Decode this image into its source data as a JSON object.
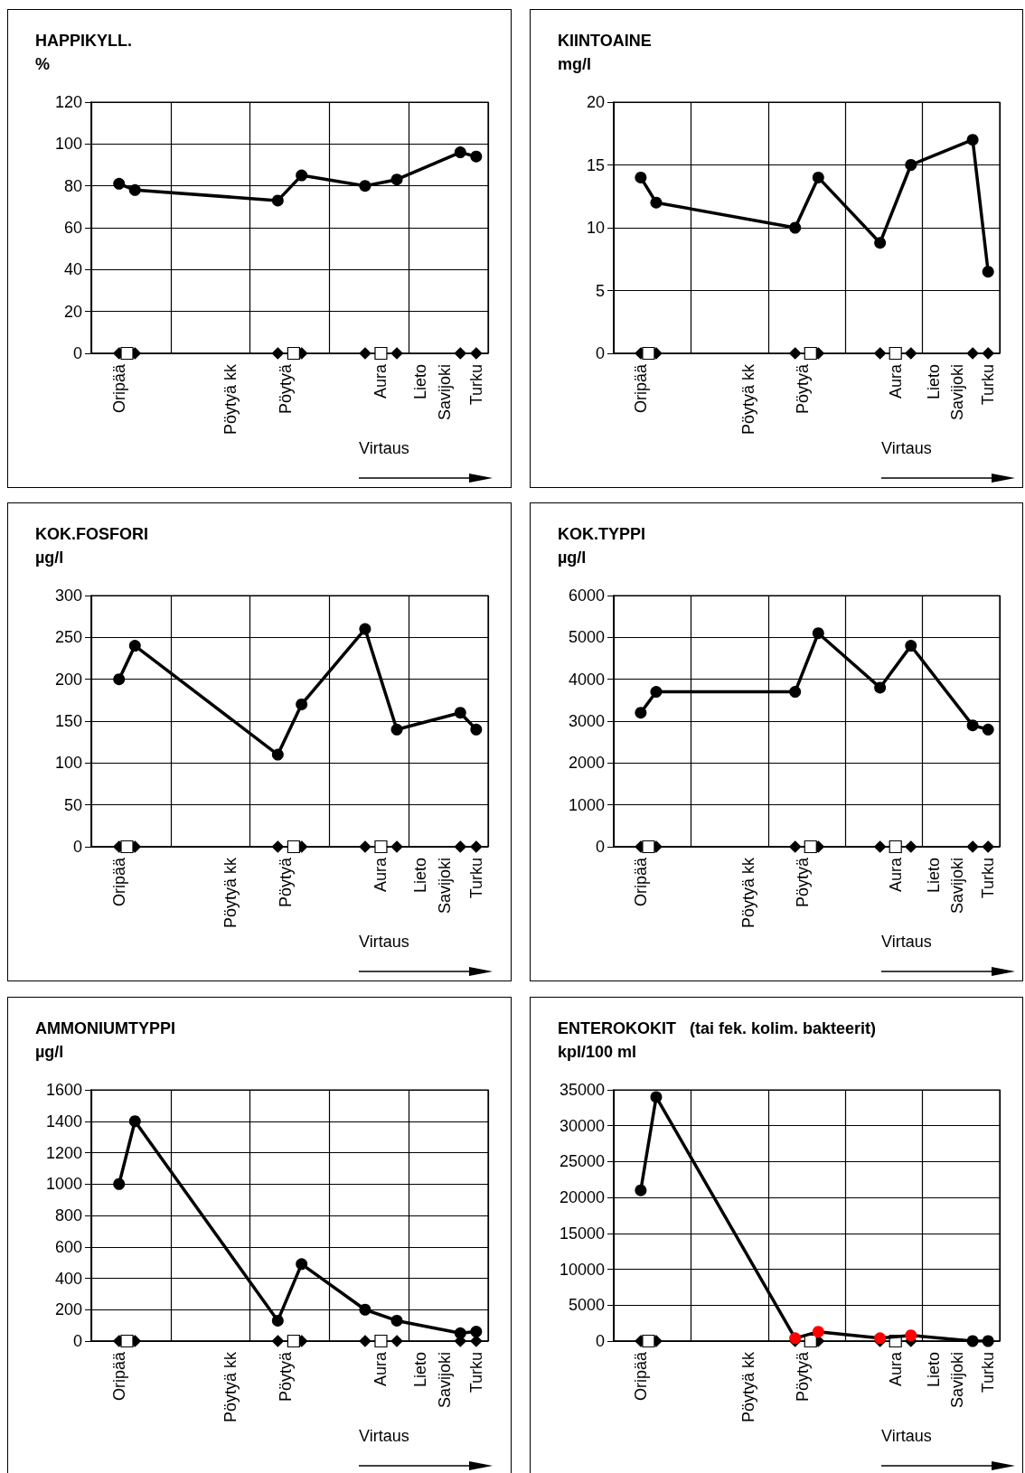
{
  "chart_data": [
    {
      "type": "line",
      "title": "HAPPIKYLL.",
      "ylabel": "%",
      "categories": [
        null,
        null,
        null,
        "Oripää",
        null,
        null,
        null,
        null,
        null,
        null,
        null,
        null,
        null,
        null,
        null,
        null,
        null,
        "Pöytyä kk",
        null,
        null,
        null,
        null,
        null,
        null,
        "Pöytyä",
        null,
        null,
        null,
        null,
        null,
        null,
        null,
        null,
        null,
        null,
        null,
        "Aura",
        null,
        null,
        null,
        null,
        "Lieto",
        null,
        null,
        "Savijoki",
        null,
        null,
        null,
        "Turku",
        null
      ],
      "ylim": [
        0,
        120
      ],
      "yticks": [
        0,
        20,
        40,
        60,
        80,
        100,
        120
      ],
      "grid": true,
      "marker": "circle",
      "annotations": [
        "Virtaus"
      ],
      "series": [
        {
          "color": "#000000",
          "values": [
            null,
            null,
            null,
            81,
            null,
            78,
            null,
            null,
            null,
            null,
            null,
            null,
            null,
            null,
            null,
            null,
            null,
            null,
            null,
            null,
            null,
            null,
            null,
            73,
            null,
            null,
            85,
            null,
            null,
            null,
            null,
            null,
            null,
            null,
            80,
            null,
            null,
            null,
            83,
            null,
            null,
            null,
            null,
            null,
            null,
            null,
            96,
            null,
            94,
            null
          ]
        },
        {
          "type": "scatter",
          "marker": "diamond",
          "color": "#000000",
          "values": [
            null,
            null,
            null,
            0,
            null,
            0,
            null,
            null,
            null,
            null,
            null,
            null,
            null,
            null,
            null,
            null,
            null,
            null,
            null,
            null,
            null,
            null,
            null,
            0,
            null,
            null,
            0,
            null,
            null,
            null,
            null,
            null,
            null,
            null,
            0,
            null,
            null,
            null,
            0,
            null,
            null,
            null,
            null,
            null,
            null,
            null,
            0,
            null,
            0,
            null
          ]
        },
        {
          "type": "scatter",
          "marker": "square",
          "color": "#ffffff",
          "values": [
            null,
            null,
            null,
            null,
            0,
            null,
            null,
            null,
            null,
            null,
            null,
            null,
            null,
            null,
            null,
            null,
            null,
            null,
            null,
            null,
            null,
            null,
            null,
            null,
            null,
            0,
            null,
            null,
            null,
            null,
            null,
            null,
            null,
            null,
            null,
            null,
            0,
            null,
            null,
            null,
            null,
            null,
            null,
            null,
            null,
            null,
            null,
            null,
            null,
            null
          ]
        }
      ]
    },
    {
      "type": "line",
      "title": "KIINTOAINE",
      "ylabel": "mg/l",
      "categories": [
        null,
        null,
        null,
        "Oripää",
        null,
        null,
        null,
        null,
        null,
        null,
        null,
        null,
        null,
        null,
        null,
        null,
        null,
        "Pöytyä kk",
        null,
        null,
        null,
        null,
        null,
        null,
        "Pöytyä",
        null,
        null,
        null,
        null,
        null,
        null,
        null,
        null,
        null,
        null,
        null,
        "Aura",
        null,
        null,
        null,
        null,
        "Lieto",
        null,
        null,
        "Savijoki",
        null,
        null,
        null,
        "Turku",
        null
      ],
      "ylim": [
        0,
        20
      ],
      "yticks": [
        0,
        5,
        10,
        15,
        20
      ],
      "grid": true,
      "marker": "circle",
      "annotations": [
        "Virtaus"
      ],
      "series": [
        {
          "color": "#000000",
          "values": [
            null,
            null,
            null,
            14,
            null,
            12,
            null,
            null,
            null,
            null,
            null,
            null,
            null,
            null,
            null,
            null,
            null,
            null,
            null,
            null,
            null,
            null,
            null,
            10,
            null,
            null,
            14,
            null,
            null,
            null,
            null,
            null,
            null,
            null,
            8.8,
            null,
            null,
            null,
            15,
            null,
            null,
            null,
            null,
            null,
            null,
            null,
            17,
            null,
            6.5,
            null
          ]
        },
        {
          "type": "scatter",
          "marker": "diamond",
          "color": "#000000",
          "values": [
            null,
            null,
            null,
            0,
            null,
            0,
            null,
            null,
            null,
            null,
            null,
            null,
            null,
            null,
            null,
            null,
            null,
            null,
            null,
            null,
            null,
            null,
            null,
            0,
            null,
            null,
            0,
            null,
            null,
            null,
            null,
            null,
            null,
            null,
            0,
            null,
            null,
            null,
            0,
            null,
            null,
            null,
            null,
            null,
            null,
            null,
            0,
            null,
            0,
            null
          ]
        },
        {
          "type": "scatter",
          "marker": "square",
          "color": "#ffffff",
          "values": [
            null,
            null,
            null,
            null,
            0,
            null,
            null,
            null,
            null,
            null,
            null,
            null,
            null,
            null,
            null,
            null,
            null,
            null,
            null,
            null,
            null,
            null,
            null,
            null,
            null,
            0,
            null,
            null,
            null,
            null,
            null,
            null,
            null,
            null,
            null,
            null,
            0,
            null,
            null,
            null,
            null,
            null,
            null,
            null,
            null,
            null,
            null,
            null,
            null,
            null
          ]
        }
      ]
    },
    {
      "type": "line",
      "title": "KOK.FOSFORI",
      "ylabel": "µg/l",
      "categories": [
        null,
        null,
        null,
        "Oripää",
        null,
        null,
        null,
        null,
        null,
        null,
        null,
        null,
        null,
        null,
        null,
        null,
        null,
        "Pöytyä kk",
        null,
        null,
        null,
        null,
        null,
        null,
        "Pöytyä",
        null,
        null,
        null,
        null,
        null,
        null,
        null,
        null,
        null,
        null,
        null,
        "Aura",
        null,
        null,
        null,
        null,
        "Lieto",
        null,
        null,
        "Savijoki",
        null,
        null,
        null,
        "Turku",
        null
      ],
      "ylim": [
        0,
        300
      ],
      "yticks": [
        0,
        50,
        100,
        150,
        200,
        250,
        300
      ],
      "grid": true,
      "marker": "circle",
      "annotations": [
        "Virtaus"
      ],
      "series": [
        {
          "color": "#000000",
          "values": [
            null,
            null,
            null,
            200,
            null,
            240,
            null,
            null,
            null,
            null,
            null,
            null,
            null,
            null,
            null,
            null,
            null,
            null,
            null,
            null,
            null,
            null,
            null,
            110,
            null,
            null,
            170,
            null,
            null,
            null,
            null,
            null,
            null,
            null,
            260,
            null,
            null,
            null,
            140,
            null,
            null,
            null,
            null,
            null,
            null,
            null,
            160,
            null,
            140,
            null
          ]
        },
        {
          "type": "scatter",
          "marker": "diamond",
          "color": "#000000",
          "values": [
            null,
            null,
            null,
            0,
            null,
            0,
            null,
            null,
            null,
            null,
            null,
            null,
            null,
            null,
            null,
            null,
            null,
            null,
            null,
            null,
            null,
            null,
            null,
            0,
            null,
            null,
            0,
            null,
            null,
            null,
            null,
            null,
            null,
            null,
            0,
            null,
            null,
            null,
            0,
            null,
            null,
            null,
            null,
            null,
            null,
            null,
            0,
            null,
            0,
            null
          ]
        },
        {
          "type": "scatter",
          "marker": "square",
          "color": "#ffffff",
          "values": [
            null,
            null,
            null,
            null,
            0,
            null,
            null,
            null,
            null,
            null,
            null,
            null,
            null,
            null,
            null,
            null,
            null,
            null,
            null,
            null,
            null,
            null,
            null,
            null,
            null,
            0,
            null,
            null,
            null,
            null,
            null,
            null,
            null,
            null,
            null,
            null,
            0,
            null,
            null,
            null,
            null,
            null,
            null,
            null,
            null,
            null,
            null,
            null,
            null,
            null
          ]
        }
      ]
    },
    {
      "type": "line",
      "title": "KOK.TYPPI",
      "ylabel": "µg/l",
      "categories": [
        null,
        null,
        null,
        "Oripää",
        null,
        null,
        null,
        null,
        null,
        null,
        null,
        null,
        null,
        null,
        null,
        null,
        null,
        "Pöytyä kk",
        null,
        null,
        null,
        null,
        null,
        null,
        "Pöytyä",
        null,
        null,
        null,
        null,
        null,
        null,
        null,
        null,
        null,
        null,
        null,
        "Aura",
        null,
        null,
        null,
        null,
        "Lieto",
        null,
        null,
        "Savijoki",
        null,
        null,
        null,
        "Turku",
        null
      ],
      "ylim": [
        0,
        6000
      ],
      "yticks": [
        0,
        1000,
        2000,
        3000,
        4000,
        5000,
        6000
      ],
      "grid": true,
      "marker": "circle",
      "annotations": [
        "Virtaus"
      ],
      "series": [
        {
          "color": "#000000",
          "values": [
            null,
            null,
            null,
            3200,
            null,
            3700,
            null,
            null,
            null,
            null,
            null,
            null,
            null,
            null,
            null,
            null,
            null,
            null,
            null,
            null,
            null,
            null,
            null,
            3700,
            null,
            null,
            5100,
            null,
            null,
            null,
            null,
            null,
            null,
            null,
            3800,
            null,
            null,
            null,
            4800,
            null,
            null,
            null,
            null,
            null,
            null,
            null,
            2900,
            null,
            2800,
            null
          ]
        },
        {
          "type": "scatter",
          "marker": "diamond",
          "color": "#000000",
          "values": [
            null,
            null,
            null,
            0,
            null,
            0,
            null,
            null,
            null,
            null,
            null,
            null,
            null,
            null,
            null,
            null,
            null,
            null,
            null,
            null,
            null,
            null,
            null,
            0,
            null,
            null,
            0,
            null,
            null,
            null,
            null,
            null,
            null,
            null,
            0,
            null,
            null,
            null,
            0,
            null,
            null,
            null,
            null,
            null,
            null,
            null,
            0,
            null,
            0,
            null
          ]
        },
        {
          "type": "scatter",
          "marker": "square",
          "color": "#ffffff",
          "values": [
            null,
            null,
            null,
            null,
            0,
            null,
            null,
            null,
            null,
            null,
            null,
            null,
            null,
            null,
            null,
            null,
            null,
            null,
            null,
            null,
            null,
            null,
            null,
            null,
            null,
            0,
            null,
            null,
            null,
            null,
            null,
            null,
            null,
            null,
            null,
            null,
            0,
            null,
            null,
            null,
            null,
            null,
            null,
            null,
            null,
            null,
            null,
            null,
            null,
            null
          ]
        }
      ]
    },
    {
      "type": "line",
      "title": "AMMONIUMTYPPI",
      "ylabel": "µg/l",
      "categories": [
        null,
        null,
        null,
        "Oripää",
        null,
        null,
        null,
        null,
        null,
        null,
        null,
        null,
        null,
        null,
        null,
        null,
        null,
        "Pöytyä kk",
        null,
        null,
        null,
        null,
        null,
        null,
        "Pöytyä",
        null,
        null,
        null,
        null,
        null,
        null,
        null,
        null,
        null,
        null,
        null,
        "Aura",
        null,
        null,
        null,
        null,
        "Lieto",
        null,
        null,
        "Savijoki",
        null,
        null,
        null,
        "Turku",
        null
      ],
      "ylim": [
        0,
        1600
      ],
      "yticks": [
        0,
        200,
        400,
        600,
        800,
        1000,
        1200,
        1400,
        1600
      ],
      "grid": true,
      "marker": "circle",
      "annotations": [
        "Virtaus"
      ],
      "series": [
        {
          "color": "#000000",
          "values": [
            null,
            null,
            null,
            1000,
            null,
            1400,
            null,
            null,
            null,
            null,
            null,
            null,
            null,
            null,
            null,
            null,
            null,
            null,
            null,
            null,
            null,
            null,
            null,
            130,
            null,
            null,
            490,
            null,
            null,
            null,
            null,
            null,
            null,
            null,
            200,
            null,
            null,
            null,
            130,
            null,
            null,
            null,
            null,
            null,
            null,
            null,
            50,
            null,
            60,
            null
          ]
        },
        {
          "type": "scatter",
          "marker": "diamond",
          "color": "#000000",
          "values": [
            null,
            null,
            null,
            0,
            null,
            0,
            null,
            null,
            null,
            null,
            null,
            null,
            null,
            null,
            null,
            null,
            null,
            null,
            null,
            null,
            null,
            null,
            null,
            0,
            null,
            null,
            0,
            null,
            null,
            null,
            null,
            null,
            null,
            null,
            0,
            null,
            null,
            null,
            0,
            null,
            null,
            null,
            null,
            null,
            null,
            null,
            0,
            null,
            0,
            null
          ]
        },
        {
          "type": "scatter",
          "marker": "square",
          "color": "#ffffff",
          "values": [
            null,
            null,
            null,
            null,
            0,
            null,
            null,
            null,
            null,
            null,
            null,
            null,
            null,
            null,
            null,
            null,
            null,
            null,
            null,
            null,
            null,
            null,
            null,
            null,
            null,
            0,
            null,
            null,
            null,
            null,
            null,
            null,
            null,
            null,
            null,
            null,
            0,
            null,
            null,
            null,
            null,
            null,
            null,
            null,
            null,
            null,
            null,
            null,
            null,
            null
          ]
        }
      ]
    },
    {
      "type": "line",
      "title": "ENTEROKOKIT",
      "subtitle": "(tai fek. kolim. bakteerit)",
      "ylabel": "kpl/100 ml",
      "categories": [
        null,
        null,
        null,
        "Oripää",
        null,
        null,
        null,
        null,
        null,
        null,
        null,
        null,
        null,
        null,
        null,
        null,
        null,
        "Pöytyä kk",
        null,
        null,
        null,
        null,
        null,
        null,
        "Pöytyä",
        null,
        null,
        null,
        null,
        null,
        null,
        null,
        null,
        null,
        null,
        null,
        "Aura",
        null,
        null,
        null,
        null,
        "Lieto",
        null,
        null,
        "Savijoki",
        null,
        null,
        null,
        "Turku",
        null
      ],
      "ylim": [
        0,
        35000
      ],
      "yticks": [
        0,
        5000,
        10000,
        15000,
        20000,
        25000,
        30000,
        35000
      ],
      "grid": true,
      "marker": "circle",
      "annotations": [
        "Virtaus"
      ],
      "series": [
        {
          "color": "#000000",
          "colors": [
            null,
            null,
            null,
            "#000000",
            null,
            "#000000",
            null,
            null,
            null,
            null,
            null,
            null,
            null,
            null,
            null,
            null,
            null,
            null,
            null,
            null,
            null,
            null,
            null,
            "#ff0000",
            null,
            null,
            "#ff0000",
            null,
            null,
            null,
            null,
            null,
            null,
            null,
            "#ff0000",
            null,
            null,
            null,
            "#ff0000",
            null,
            null,
            null,
            null,
            null,
            null,
            null,
            "#000000",
            null,
            "#000000",
            null
          ],
          "values": [
            null,
            null,
            null,
            21000,
            null,
            34000,
            null,
            null,
            null,
            null,
            null,
            null,
            null,
            null,
            null,
            null,
            null,
            null,
            null,
            null,
            null,
            null,
            null,
            400,
            null,
            null,
            1300,
            null,
            null,
            null,
            null,
            null,
            null,
            null,
            400,
            null,
            null,
            null,
            800,
            null,
            null,
            null,
            null,
            null,
            null,
            null,
            0,
            null,
            0,
            null
          ]
        },
        {
          "type": "scatter",
          "marker": "diamond",
          "color": "#000000",
          "values": [
            null,
            null,
            null,
            0,
            null,
            0,
            null,
            null,
            null,
            null,
            null,
            null,
            null,
            null,
            null,
            null,
            null,
            null,
            null,
            null,
            null,
            null,
            null,
            0,
            null,
            null,
            0,
            null,
            null,
            null,
            null,
            null,
            null,
            null,
            0,
            null,
            null,
            null,
            0,
            null,
            null,
            null,
            null,
            null,
            null,
            null,
            null,
            null,
            null,
            null
          ]
        },
        {
          "type": "scatter",
          "marker": "square",
          "color": "#ffffff",
          "values": [
            null,
            null,
            null,
            null,
            0,
            null,
            null,
            null,
            null,
            null,
            null,
            null,
            null,
            null,
            null,
            null,
            null,
            null,
            null,
            null,
            null,
            null,
            null,
            null,
            null,
            0,
            null,
            null,
            null,
            null,
            null,
            null,
            null,
            null,
            null,
            null,
            0,
            null,
            null,
            null,
            null,
            null,
            null,
            null,
            null,
            null,
            null,
            null,
            null,
            null
          ]
        }
      ]
    }
  ]
}
